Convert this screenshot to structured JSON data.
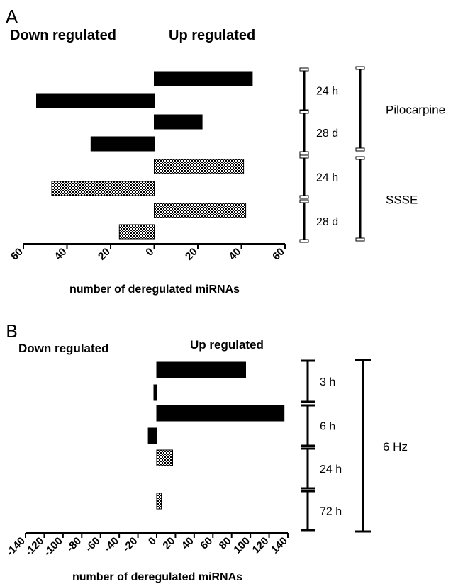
{
  "chart_data": [
    {
      "type": "bar",
      "orientation": "horizontal",
      "panel_label": "A",
      "left_header": "Down regulated",
      "right_header": "Up regulated",
      "xlabel": "number of deregulated miRNAs",
      "xlim": [
        -60,
        60
      ],
      "tick_values": [
        -60,
        -40,
        -20,
        0,
        20,
        40,
        60
      ],
      "tick_labels": [
        "60",
        "40",
        "20",
        "0",
        "20",
        "40",
        "60"
      ],
      "bars": [
        {
          "value": 45,
          "pattern": "solid",
          "group": "Pilocarpine",
          "time": "24 h",
          "direction": "up"
        },
        {
          "value": -54,
          "pattern": "solid",
          "group": "Pilocarpine",
          "time": "24 h",
          "direction": "down"
        },
        {
          "value": 22,
          "pattern": "solid",
          "group": "Pilocarpine",
          "time": "28 d",
          "direction": "up"
        },
        {
          "value": -29,
          "pattern": "solid",
          "group": "Pilocarpine",
          "time": "28 d",
          "direction": "down"
        },
        {
          "value": 41,
          "pattern": "checkered",
          "group": "SSSE",
          "time": "24 h",
          "direction": "up"
        },
        {
          "value": -47,
          "pattern": "checkered",
          "group": "SSSE",
          "time": "24 h",
          "direction": "down"
        },
        {
          "value": 42,
          "pattern": "checkered",
          "group": "SSSE",
          "time": "28 d",
          "direction": "up"
        },
        {
          "value": -16,
          "pattern": "checkered",
          "group": "SSSE",
          "time": "28 d",
          "direction": "down"
        }
      ],
      "time_labels": [
        "24 h",
        "28 d",
        "24 h",
        "28 d"
      ],
      "group_labels": [
        "Pilocarpine",
        "SSSE"
      ]
    },
    {
      "type": "bar",
      "orientation": "horizontal",
      "panel_label": "B",
      "left_header": "Down regulated",
      "right_header": "Up regulated",
      "xlabel": "number of deregulated miRNAs",
      "xlim": [
        -140,
        140
      ],
      "tick_values": [
        -140,
        -120,
        -100,
        -80,
        -60,
        -40,
        -20,
        0,
        20,
        40,
        60,
        80,
        100,
        120,
        140
      ],
      "tick_labels": [
        "-140",
        "-120",
        "-100",
        "-80",
        "-60",
        "-40",
        "-20",
        "0",
        "20",
        "40",
        "60",
        "80",
        "100",
        "120",
        "140"
      ],
      "bars": [
        {
          "value": 95,
          "pattern": "solid",
          "time": "3 h",
          "direction": "up"
        },
        {
          "value": -3,
          "pattern": "solid",
          "time": "3 h",
          "direction": "down"
        },
        {
          "value": 136,
          "pattern": "solid",
          "time": "6 h",
          "direction": "up"
        },
        {
          "value": -9,
          "pattern": "solid",
          "time": "6 h",
          "direction": "down"
        },
        {
          "value": 17,
          "pattern": "checkered",
          "time": "24 h",
          "direction": "up"
        },
        {
          "value": 5,
          "pattern": "checkered",
          "time": "72 h",
          "direction": "up"
        }
      ],
      "time_labels": [
        "3 h",
        "6 h",
        "24 h",
        "72 h"
      ],
      "group_labels": [
        "6 Hz"
      ]
    }
  ]
}
